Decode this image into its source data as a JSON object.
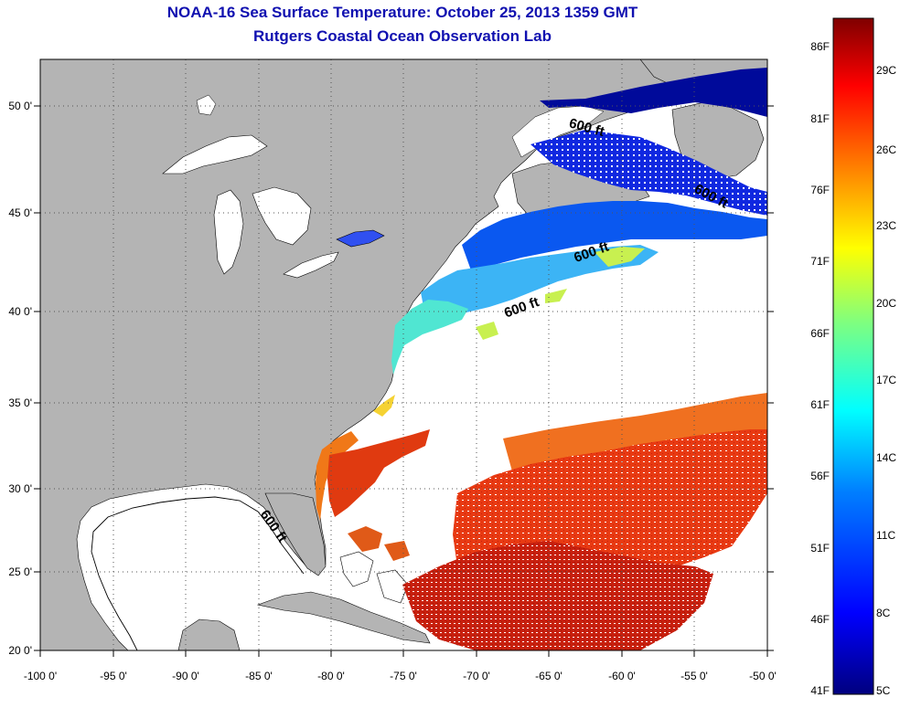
{
  "title": "NOAA-16 Sea Surface Temperature:  October 25, 2013 1359 GMT",
  "subtitle": "Rutgers Coastal Ocean Observation Lab",
  "map": {
    "lon_range": [
      -100,
      -50
    ],
    "lat_range": [
      20,
      52.5
    ],
    "lon_ticks": [
      "-100 0'",
      "-95 0'",
      "-90 0'",
      "-85 0'",
      "-80 0'",
      "-75 0'",
      "-70 0'",
      "-65 0'",
      "-60 0'",
      "-55 0'",
      "-50 0'"
    ],
    "lat_ticks": [
      "20 0'",
      "25 0'",
      "30 0'",
      "35 0'",
      "40 0'",
      "45 0'",
      "50 0'"
    ],
    "land_color": "#b4b4b4",
    "contour_label": "600 ft",
    "contour_labels": [
      {
        "text": "600 ft",
        "lon": -66.8,
        "lat": 40.0
      },
      {
        "text": "600 ft",
        "lon": -62.0,
        "lat": 42.8
      },
      {
        "text": "600 ft",
        "lon": -54.0,
        "lat": 45.6
      },
      {
        "text": "600 ft",
        "lon": -62.5,
        "lat": 48.8
      },
      {
        "text": "600 ft",
        "lon": -84.2,
        "lat": 27.6
      }
    ]
  },
  "colorbar": {
    "f_labels": [
      "86F",
      "81F",
      "76F",
      "71F",
      "66F",
      "61F",
      "56F",
      "51F",
      "46F",
      "41F"
    ],
    "c_labels": [
      "29C",
      "26C",
      "23C",
      "20C",
      "17C",
      "14C",
      "11C",
      "8C",
      "5C"
    ],
    "colors": [
      "#00007f",
      "#0000ff",
      "#007fff",
      "#00ffff",
      "#7fff7f",
      "#ffff00",
      "#ff7f00",
      "#ff0000",
      "#7f0000"
    ]
  }
}
